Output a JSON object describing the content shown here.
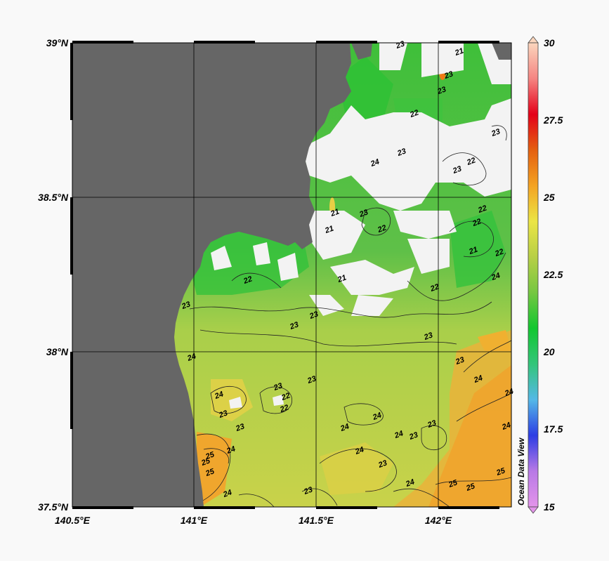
{
  "map": {
    "y_axis_labels": [
      "39°N",
      "38.5°N",
      "38°N",
      "37.5°N"
    ],
    "x_axis_labels": [
      "140.5°E",
      "141°E",
      "141.5°E",
      "142°E"
    ],
    "lat_range": [
      37.5,
      39.0
    ],
    "lon_range": [
      140.5,
      142.3
    ],
    "land_color": "#666666",
    "no_data_color": "#f3f3f3"
  },
  "colorbar": {
    "tick_labels": [
      "30",
      "27.5",
      "25",
      "22.5",
      "20",
      "17.5",
      "15"
    ],
    "range": [
      15,
      30
    ],
    "watermark": "Ocean Data View",
    "colors": [
      "#e394ea",
      "#b879e6",
      "#2d3de4",
      "#54b8e7",
      "#33c57a",
      "#12c730",
      "#76c741",
      "#b7cf46",
      "#ebe545",
      "#f4a323",
      "#e46010",
      "#e40019",
      "#f58582",
      "#fbd6bd"
    ]
  },
  "contour_labels": [
    "23",
    "21",
    "23",
    "23",
    "22",
    "23",
    "24",
    "23",
    "23",
    "22",
    "22",
    "22",
    "22",
    "21",
    "22",
    "22",
    "21",
    "21",
    "23",
    "24",
    "22",
    "23",
    "23",
    "23",
    "24",
    "23",
    "23",
    "23",
    "23",
    "22",
    "24",
    "23",
    "25",
    "23",
    "24",
    "24",
    "24",
    "24",
    "24",
    "23",
    "23",
    "24",
    "24",
    "24",
    "25",
    "25",
    "25",
    "24",
    "23",
    "23",
    "24",
    "22",
    "21",
    "25",
    "25"
  ]
}
